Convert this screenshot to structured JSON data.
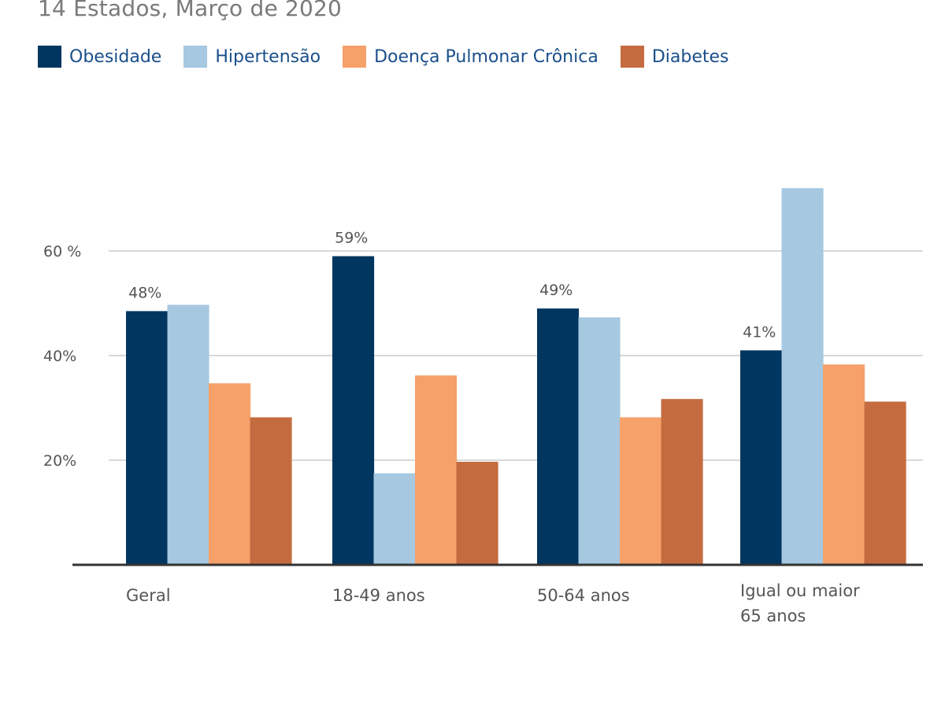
{
  "chart_data": {
    "type": "bar",
    "title": "",
    "subtitle": "14 Estados, Março de 2020",
    "xlabel": "",
    "ylabel": "",
    "ylim": [
      0,
      72
    ],
    "yticks": [
      {
        "value": 20,
        "label": "20%"
      },
      {
        "value": 40,
        "label": "40%"
      },
      {
        "value": 60,
        "label": "60 %"
      }
    ],
    "categories": [
      [
        "Geral"
      ],
      [
        "18-49 anos"
      ],
      [
        "50-64 anos"
      ],
      [
        "Igual ou maior",
        "65 anos"
      ]
    ],
    "series": [
      {
        "name": "Obesidade",
        "color": "#003660",
        "values": [
          48.5,
          59,
          49,
          41
        ],
        "labels": [
          "48%",
          "59%",
          "49%",
          "41%"
        ]
      },
      {
        "name": "Hipertensão",
        "color": "#a6c8e0",
        "values": [
          49.7,
          17.5,
          47.3,
          72
        ],
        "labels": [
          "",
          "",
          "",
          ""
        ]
      },
      {
        "name": "Doença Pulmonar Crônica",
        "color": "#f6a06a",
        "values": [
          34.7,
          36.2,
          28.2,
          38.3
        ],
        "labels": [
          "",
          "",
          "",
          ""
        ]
      },
      {
        "name": "Diabetes",
        "color": "#c46c40",
        "values": [
          28.2,
          19.7,
          31.7,
          31.2
        ],
        "labels": [
          "",
          "",
          "",
          ""
        ]
      }
    ],
    "grid": true,
    "legend_position": "top-left"
  }
}
